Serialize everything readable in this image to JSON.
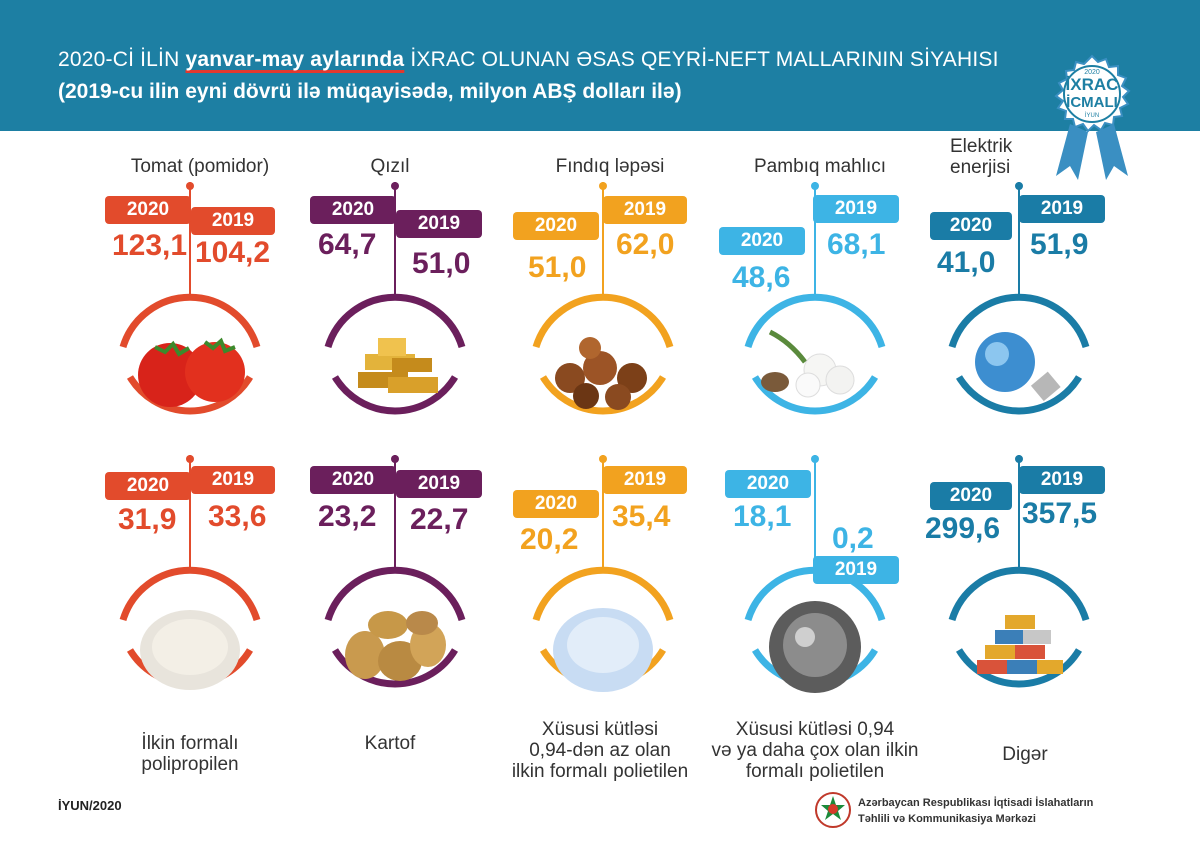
{
  "header": {
    "title_prefix": "2020-Cİ İLİN",
    "title_highlight": "yanvar-may aylarında",
    "title_suffix": "İXRAC OLUNAN ƏSAS QEYRİ-NEFT MALLARININ SİYAHISI",
    "subtitle": "(2019-cu ilin eyni dövrü ilə müqayisədə, milyon ABŞ dolları ilə)"
  },
  "badge": {
    "year": "2020",
    "line1": "İXRAC",
    "line2": "İCMALI",
    "month": "İYUN"
  },
  "legend": {
    "y2020": "2020",
    "y2019": "2019"
  },
  "chart_data": {
    "type": "table",
    "title": "2020-Cİ İLİN yanvar-may aylarında İXRAC OLUNAN ƏSAS QEYRİ-NEFT MALLARININ SİYAHISI",
    "unit": "milyon ABŞ dolları",
    "series_names": [
      "2020",
      "2019"
    ],
    "items": [
      {
        "name": "Tomat (pomidor)",
        "v2020": "123,1",
        "v2019": "104,2",
        "color": "#e24b2c"
      },
      {
        "name": "Qızıl",
        "v2020": "64,7",
        "v2019": "51,0",
        "color": "#6b1f5c"
      },
      {
        "name": "Fındıq ləpəsi",
        "v2020": "51,0",
        "v2019": "62,0",
        "color": "#f2a21f"
      },
      {
        "name": "Pambıq mahlıcı",
        "v2020": "48,6",
        "v2019": "68,1",
        "color": "#3db4e5"
      },
      {
        "name": "Elektrik enerjisi",
        "v2020": "41,0",
        "v2019": "51,9",
        "color": "#1a7ca6"
      },
      {
        "name": "İlkin formalı polipropilen",
        "v2020": "31,9",
        "v2019": "33,6",
        "color": "#e24b2c"
      },
      {
        "name": "Kartof",
        "v2020": "23,2",
        "v2019": "22,7",
        "color": "#6b1f5c"
      },
      {
        "name": "Xüsusi kütləsi 0,94-dən az olan ilkin formalı polietilen",
        "v2020": "20,2",
        "v2019": "35,4",
        "color": "#f2a21f"
      },
      {
        "name": "Xüsusi kütləsi 0,94 və ya daha çox olan ilkin formalı polietilen",
        "v2020": "18,1",
        "v2019": "0,2",
        "color": "#3db4e5"
      },
      {
        "name": "Digər",
        "v2020": "299,6",
        "v2019": "357,5",
        "color": "#1a7ca6"
      }
    ]
  },
  "labels": {
    "tomat": "Tomat (pomidor)",
    "qizil": "Qızıl",
    "findiq": "Fındıq ləpəsi",
    "pambiq": "Pambıq mahlıcı",
    "elektrik_1": "Elektrik",
    "elektrik_2": "enerjisi",
    "poliprop_1": "İlkin formalı",
    "poliprop_2": "polipropilen",
    "kartof": "Kartof",
    "polie1_1": "Xüsusi kütləsi",
    "polie1_2": "0,94-dən az olan",
    "polie1_3": "ilkin formalı polietilen",
    "polie2_1": "Xüsusi kütləsi 0,94",
    "polie2_2": "və ya daha çox olan ilkin",
    "polie2_3": "formalı polietilen",
    "diger": "Digər"
  },
  "footer": {
    "date": "İYUN/2020",
    "org_line1": "Azərbaycan Respublikası İqtisadi İslahatların",
    "org_line2": "Təhlili və Kommunikasiya Mərkəzi"
  }
}
